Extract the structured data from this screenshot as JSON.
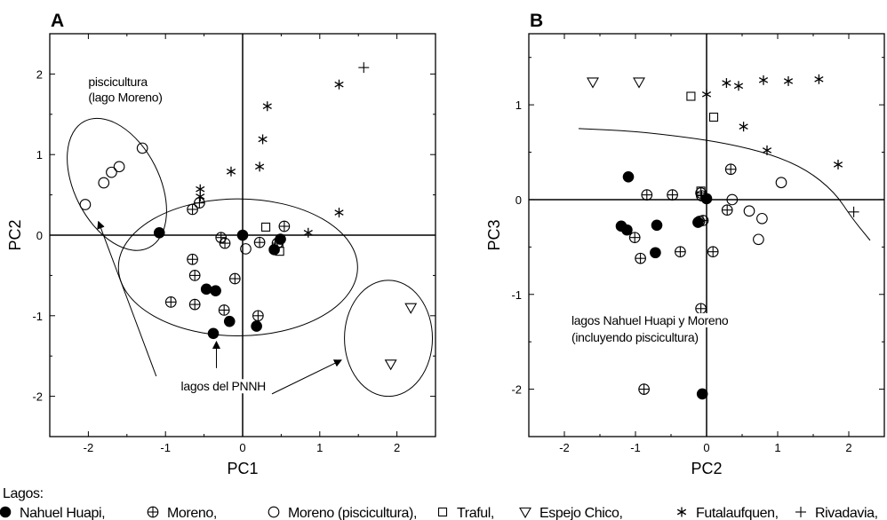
{
  "chart_data": [
    {
      "type": "scatter",
      "panel": "A",
      "xlabel": "PC1",
      "ylabel": "PC2",
      "xlim": [
        -2.5,
        2.5
      ],
      "ylim": [
        -2.5,
        2.5
      ],
      "xticks": [
        "-2",
        "-1",
        "0",
        "1",
        "2"
      ],
      "yticks": [
        "2",
        "1",
        "0",
        "-1",
        "-2"
      ],
      "zero_lines": true,
      "annotations": [
        {
          "text": "piscicultura",
          "x": -2.0,
          "y": 1.85
        },
        {
          "text": "(lago Moreno)",
          "x": -2.0,
          "y": 1.66
        },
        {
          "text": "lagos del PNNH",
          "x": -0.8,
          "y": -1.93
        }
      ],
      "series": [
        {
          "key": "nahuel_huapi",
          "points": [
            [
              -1.08,
              0.03
            ],
            [
              -0.47,
              -0.67
            ],
            [
              -0.35,
              -0.69
            ],
            [
              -0.38,
              -1.22
            ],
            [
              -0.17,
              -1.07
            ],
            [
              0.18,
              -1.13
            ],
            [
              0.41,
              -0.18
            ],
            [
              0.49,
              -0.05
            ],
            [
              0.0,
              0.0
            ]
          ]
        },
        {
          "key": "moreno",
          "points": [
            [
              -0.65,
              0.32
            ],
            [
              -0.56,
              0.4
            ],
            [
              -0.65,
              -0.3
            ],
            [
              -0.62,
              -0.5
            ],
            [
              -0.28,
              -0.03
            ],
            [
              -0.23,
              -0.1
            ],
            [
              -0.93,
              -0.83
            ],
            [
              -0.62,
              -0.86
            ],
            [
              -0.1,
              -0.54
            ],
            [
              -0.24,
              -0.93
            ],
            [
              0.2,
              -1.0
            ],
            [
              0.22,
              -0.09
            ],
            [
              0.54,
              0.11
            ],
            [
              0.45,
              -0.1
            ]
          ]
        },
        {
          "key": "moreno_pisc",
          "points": [
            [
              -2.04,
              0.38
            ],
            [
              -1.8,
              0.65
            ],
            [
              -1.7,
              0.78
            ],
            [
              -1.6,
              0.85
            ],
            [
              -1.3,
              1.08
            ],
            [
              0.04,
              -0.17
            ]
          ]
        },
        {
          "key": "traful",
          "points": [
            [
              0.3,
              0.1
            ],
            [
              0.47,
              -0.1
            ],
            [
              0.48,
              -0.2
            ]
          ]
        },
        {
          "key": "espejo_chico",
          "points": [
            [
              2.18,
              -0.9
            ],
            [
              1.92,
              -1.6
            ]
          ]
        },
        {
          "key": "futalaufquen",
          "points": [
            [
              -0.55,
              0.57
            ],
            [
              -0.55,
              0.48
            ],
            [
              -0.15,
              0.79
            ],
            [
              0.22,
              0.85
            ],
            [
              0.26,
              1.19
            ],
            [
              0.32,
              1.6
            ],
            [
              0.85,
              0.03
            ],
            [
              1.25,
              1.87
            ],
            [
              1.25,
              0.28
            ]
          ]
        },
        {
          "key": "rivadavia",
          "points": [
            [
              1.57,
              2.08
            ]
          ]
        }
      ],
      "ellipses": [
        {
          "cx": -1.63,
          "cy": 0.63,
          "rx": 0.55,
          "ry": 0.88,
          "rot": -27
        },
        {
          "cx": -0.06,
          "cy": -0.4,
          "rx": 1.55,
          "ry": 0.85,
          "rot": 0
        },
        {
          "cx": 1.89,
          "cy": -1.28,
          "rx": 0.57,
          "ry": 0.72,
          "rot": 0
        }
      ],
      "arrows": [
        {
          "from": [
            -1.12,
            -1.75
          ],
          "to": [
            -1.87,
            0.17
          ]
        },
        {
          "from": [
            -0.34,
            -1.65
          ],
          "to": [
            -0.34,
            -1.32
          ]
        },
        {
          "from": [
            0.38,
            -1.97
          ],
          "to": [
            1.28,
            -1.55
          ]
        }
      ]
    },
    {
      "type": "scatter",
      "panel": "B",
      "xlabel": "PC2",
      "ylabel": "PC3",
      "xlim": [
        -2.5,
        2.5
      ],
      "ylim": [
        -2.5,
        1.75
      ],
      "xticks": [
        "-2",
        "-1",
        "0",
        "1",
        "2"
      ],
      "yticks": [
        "1",
        "0",
        "-1",
        "-2"
      ],
      "zero_lines": true,
      "annotations": [
        {
          "text": "lagos Nahuel Huapi y Moreno",
          "x": -1.9,
          "y": -1.32
        },
        {
          "text": "(incluyendo piscicultura)",
          "x": -1.9,
          "y": -1.5
        }
      ],
      "curve": [
        [
          -1.8,
          0.75
        ],
        [
          -1.0,
          0.72
        ],
        [
          -0.3,
          0.66
        ],
        [
          0.3,
          0.59
        ],
        [
          0.9,
          0.48
        ],
        [
          1.4,
          0.32
        ],
        [
          1.8,
          0.08
        ],
        [
          2.05,
          -0.2
        ],
        [
          2.3,
          -0.43
        ]
      ],
      "series": [
        {
          "key": "nahuel_huapi",
          "points": [
            [
              -1.1,
              0.24
            ],
            [
              -1.2,
              -0.28
            ],
            [
              -1.12,
              -0.32
            ],
            [
              -0.7,
              -0.27
            ],
            [
              -0.72,
              -0.56
            ],
            [
              -0.12,
              -0.24
            ],
            [
              0.0,
              0.01
            ],
            [
              -0.06,
              -2.05
            ]
          ]
        },
        {
          "key": "moreno",
          "points": [
            [
              -0.84,
              0.05
            ],
            [
              -0.48,
              0.05
            ],
            [
              -0.08,
              0.07
            ],
            [
              -0.07,
              0.04
            ],
            [
              -0.05,
              -0.22
            ],
            [
              -0.1,
              -0.23
            ],
            [
              -1.01,
              -0.4
            ],
            [
              -0.93,
              -0.62
            ],
            [
              -0.37,
              -0.55
            ],
            [
              0.09,
              -0.55
            ],
            [
              0.34,
              0.32
            ],
            [
              0.29,
              -0.11
            ],
            [
              -0.08,
              -1.15
            ],
            [
              -0.88,
              -2.0
            ]
          ]
        },
        {
          "key": "moreno_pisc",
          "points": [
            [
              0.36,
              0.0
            ],
            [
              0.6,
              -0.12
            ],
            [
              0.78,
              -0.2
            ],
            [
              0.73,
              -0.42
            ],
            [
              1.05,
              0.18
            ]
          ]
        },
        {
          "key": "traful",
          "points": [
            [
              -0.08,
              0.09
            ],
            [
              0.1,
              0.87
            ],
            [
              -0.22,
              1.09
            ]
          ]
        },
        {
          "key": "espejo_chico",
          "points": [
            [
              -1.6,
              1.24
            ],
            [
              -0.95,
              1.24
            ]
          ]
        },
        {
          "key": "futalaufquen",
          "points": [
            [
              0.0,
              1.11
            ],
            [
              0.28,
              1.23
            ],
            [
              0.45,
              1.2
            ],
            [
              0.8,
              1.26
            ],
            [
              1.15,
              1.25
            ],
            [
              1.58,
              1.27
            ],
            [
              0.52,
              0.77
            ],
            [
              0.85,
              0.52
            ],
            [
              1.85,
              0.37
            ]
          ]
        },
        {
          "key": "rivadavia",
          "points": [
            [
              2.07,
              -0.13
            ]
          ]
        }
      ]
    }
  ],
  "legend": {
    "title": "Lagos:",
    "entries": [
      {
        "key": "nahuel_huapi",
        "label": "Nahuel Huapi,"
      },
      {
        "key": "moreno",
        "label": "Moreno,"
      },
      {
        "key": "moreno_pisc",
        "label": "Moreno (piscicultura),"
      },
      {
        "key": "traful",
        "label": "Traful,"
      },
      {
        "key": "espejo_chico",
        "label": "Espejo Chico,"
      },
      {
        "key": "futalaufquen",
        "label": "Futalaufquen,"
      },
      {
        "key": "rivadavia",
        "label": "Rivadavia,"
      }
    ]
  },
  "marker_shapes": {
    "nahuel_huapi": "filled-circle",
    "moreno": "circle-plus",
    "moreno_pisc": "open-circle",
    "traful": "open-square",
    "espejo_chico": "open-triangle-down",
    "futalaufquen": "asterisk",
    "rivadavia": "plus"
  },
  "colors": {
    "ink": "#000000",
    "background": "#ffffff"
  }
}
